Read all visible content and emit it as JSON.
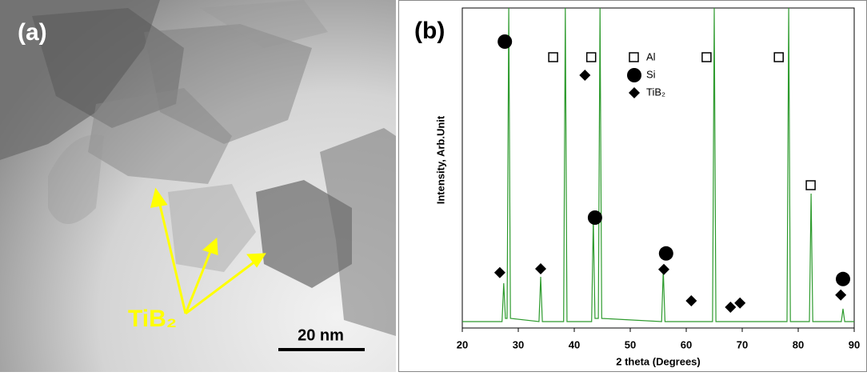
{
  "panel_a": {
    "label": "(a)",
    "annotation": "TiB₂",
    "scale_bar": "20 nm"
  },
  "chart_data": {
    "type": "line",
    "panel_label": "(b)",
    "x_label": "2 theta (Degrees)",
    "y_label": "Intensity, Arb.Unit",
    "xlim": [
      20,
      90
    ],
    "xticks": [
      20,
      30,
      40,
      50,
      60,
      70,
      80,
      90
    ],
    "ylim": [
      0,
      100
    ],
    "series": [
      {
        "color": "#2e9b2e",
        "x": [
          20,
          27.1,
          27.4,
          27.7,
          28.0,
          28.3,
          28.6,
          33.7,
          34.0,
          34.3,
          38.1,
          38.4,
          38.7,
          43.1,
          43.4,
          43.7,
          44.3,
          44.6,
          44.9,
          55.6,
          55.9,
          56.2,
          64.7,
          65.0,
          65.3,
          78.0,
          78.3,
          78.6,
          82.0,
          82.3,
          82.6,
          87.7,
          88.0,
          88.3,
          90
        ],
        "values": [
          2,
          2,
          14,
          3,
          3,
          100,
          3,
          2,
          16,
          2,
          2,
          100,
          2,
          2,
          34,
          3,
          3,
          100,
          3,
          2,
          18,
          2,
          2,
          100,
          2,
          2,
          100,
          2,
          2,
          42,
          2,
          2,
          6,
          2,
          2
        ]
      }
    ],
    "phases": [
      {
        "name": "Al",
        "marker": "square",
        "x": [
          36.3,
          43.1,
          63.7,
          76.6,
          82.3
        ],
        "values": [
          84.5,
          84.5,
          84.5,
          84.5,
          44.5
        ]
      },
      {
        "name": "Si",
        "marker": "circle",
        "x": [
          27.6,
          43.7,
          56.4,
          88.0
        ],
        "values": [
          89.5,
          34.5,
          23.3,
          15.3
        ]
      },
      {
        "name": "TiB₂",
        "marker": "diamond",
        "x": [
          26.7,
          34.0,
          41.9,
          56.0,
          60.9,
          67.9,
          69.6,
          87.6
        ],
        "values": [
          17.3,
          18.5,
          79,
          18.3,
          8.5,
          6.5,
          7.8,
          10.3
        ]
      }
    ]
  }
}
